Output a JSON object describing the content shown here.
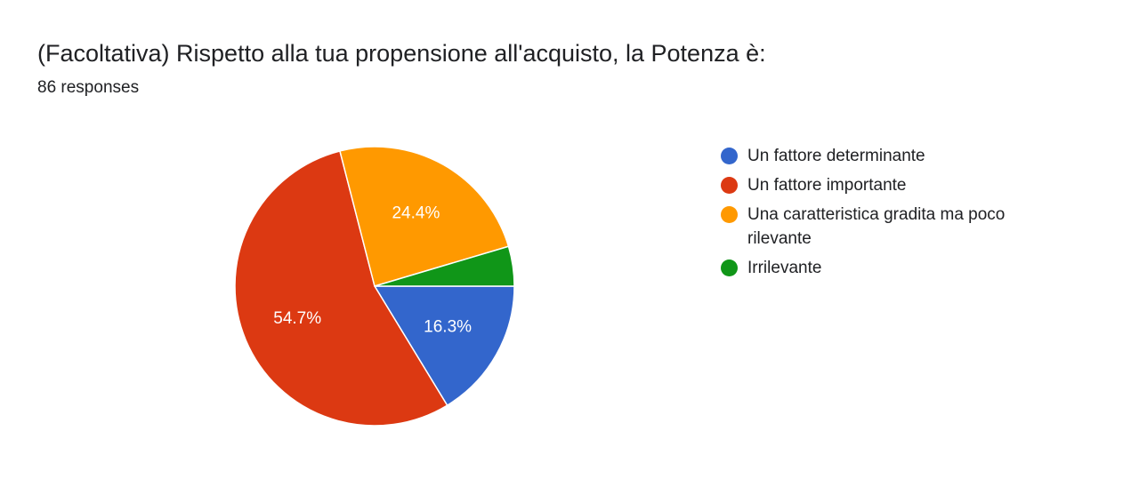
{
  "header": {
    "title": "(Facoltativa) Rispetto alla tua propensione all'acquisto, la Potenza è:",
    "responses": "86 responses"
  },
  "chart_data": {
    "type": "pie",
    "title": "(Facoltativa) Rispetto alla tua propensione all'acquisto, la Potenza è:",
    "slices": [
      {
        "label": "Un fattore determinante",
        "value": 16.3,
        "display": "16.3%",
        "color": "#3366cc"
      },
      {
        "label": "Un fattore importante",
        "value": 54.7,
        "display": "54.7%",
        "color": "#dc3912"
      },
      {
        "label": "Una caratteristica gradita ma poco rilevante",
        "value": 24.4,
        "display": "24.4%",
        "color": "#ff9900"
      },
      {
        "label": "Irrilevante",
        "value": 4.6,
        "display": "",
        "color": "#109618"
      }
    ],
    "legend_position": "right"
  }
}
